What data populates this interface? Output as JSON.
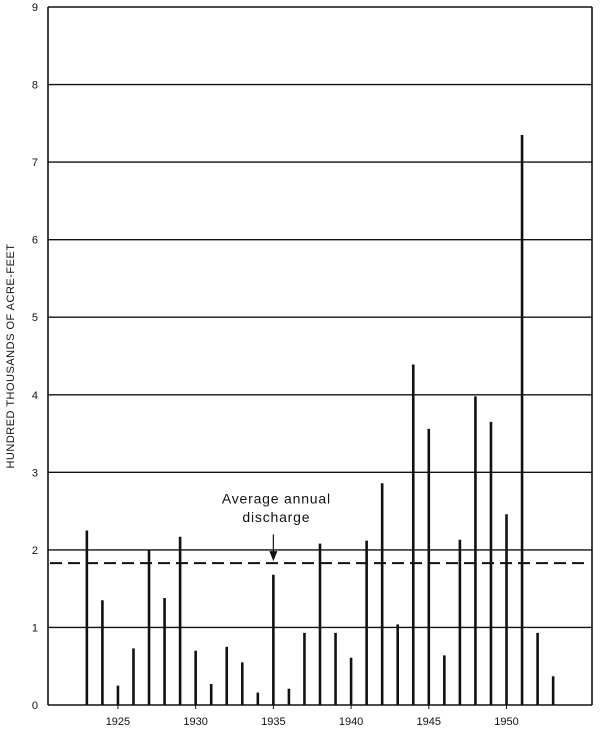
{
  "chart_data": {
    "type": "bar",
    "title": "",
    "xlabel": "",
    "ylabel": "HUNDRED THOUSANDS OF ACRE-FEET",
    "ylim": [
      0,
      9
    ],
    "xlim": [
      1920.5,
      1955.5
    ],
    "grid": true,
    "y_ticks": [
      "0",
      "1",
      "2",
      "3",
      "4",
      "5",
      "6",
      "7",
      "8",
      "9"
    ],
    "x_ticks": [
      "1925",
      "1930",
      "1935",
      "1940",
      "1945",
      "1950"
    ],
    "years": [
      1923,
      1924,
      1925,
      1926,
      1927,
      1928,
      1929,
      1930,
      1931,
      1932,
      1933,
      1934,
      1935,
      1936,
      1937,
      1938,
      1939,
      1940,
      1941,
      1942,
      1943,
      1944,
      1945,
      1946,
      1947,
      1948,
      1949,
      1950,
      1951,
      1952,
      1953
    ],
    "values": [
      2.25,
      1.35,
      0.25,
      0.73,
      2.0,
      1.38,
      2.17,
      0.7,
      0.27,
      0.75,
      0.55,
      0.16,
      1.68,
      0.21,
      0.93,
      2.08,
      0.93,
      0.61,
      2.12,
      2.86,
      1.04,
      4.39,
      3.56,
      0.64,
      2.13,
      3.98,
      3.65,
      2.46,
      7.35,
      0.93,
      0.37
    ],
    "average": {
      "value": 1.83,
      "label_line1": "Average annual",
      "label_line2": "discharge",
      "year": 1935
    }
  }
}
